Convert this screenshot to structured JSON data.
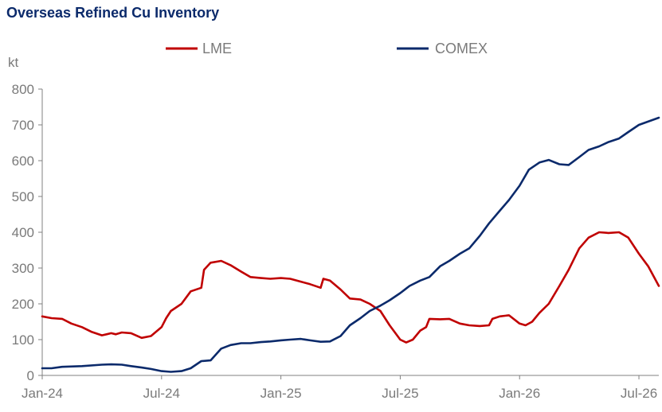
{
  "chart_data": {
    "type": "line",
    "title": "Overseas Refined Cu Inventory",
    "ylabel": "kt",
    "xlabel": "",
    "ylim": [
      0,
      800
    ],
    "yticks": [
      "0",
      "100",
      "200",
      "300",
      "400",
      "500",
      "600",
      "700",
      "800"
    ],
    "xticks": [
      "Jan-24",
      "Jul-24",
      "Jan-25",
      "Jul-25",
      "Jan-26",
      "Jul-26"
    ],
    "xlim": [
      "2024-01",
      "2026-08"
    ],
    "legend": "top",
    "grid": false,
    "series": [
      {
        "name": "LME",
        "color": "#c00000",
        "points": [
          [
            "2024-01",
            165
          ],
          [
            "2024-01-15",
            160
          ],
          [
            "2024-02",
            158
          ],
          [
            "2024-02-15",
            145
          ],
          [
            "2024-03",
            135
          ],
          [
            "2024-03-15",
            122
          ],
          [
            "2024-04",
            112
          ],
          [
            "2024-04-08",
            115
          ],
          [
            "2024-04-15",
            118
          ],
          [
            "2024-04-22",
            115
          ],
          [
            "2024-05",
            120
          ],
          [
            "2024-05-15",
            118
          ],
          [
            "2024-06",
            105
          ],
          [
            "2024-06-15",
            110
          ],
          [
            "2024-07",
            135
          ],
          [
            "2024-07-08",
            160
          ],
          [
            "2024-07-15",
            180
          ],
          [
            "2024-08",
            200
          ],
          [
            "2024-08-15",
            235
          ],
          [
            "2024-09",
            245
          ],
          [
            "2024-09-05",
            295
          ],
          [
            "2024-09-15",
            315
          ],
          [
            "2024-10",
            320
          ],
          [
            "2024-10-15",
            308
          ],
          [
            "2024-11",
            290
          ],
          [
            "2024-11-15",
            275
          ],
          [
            "2024-12",
            272
          ],
          [
            "2024-12-15",
            270
          ],
          [
            "2025-01",
            272
          ],
          [
            "2025-01-15",
            270
          ],
          [
            "2025-02",
            262
          ],
          [
            "2025-02-15",
            255
          ],
          [
            "2025-03",
            245
          ],
          [
            "2025-03-05",
            270
          ],
          [
            "2025-03-15",
            265
          ],
          [
            "2025-04",
            240
          ],
          [
            "2025-04-15",
            215
          ],
          [
            "2025-05",
            212
          ],
          [
            "2025-05-15",
            200
          ],
          [
            "2025-06",
            180
          ],
          [
            "2025-06-15",
            140
          ],
          [
            "2025-07",
            100
          ],
          [
            "2025-07-10",
            92
          ],
          [
            "2025-07-20",
            100
          ],
          [
            "2025-08",
            125
          ],
          [
            "2025-08-10",
            135
          ],
          [
            "2025-08-15",
            158
          ],
          [
            "2025-09",
            157
          ],
          [
            "2025-09-15",
            158
          ],
          [
            "2025-10",
            145
          ],
          [
            "2025-10-15",
            140
          ],
          [
            "2025-11",
            138
          ],
          [
            "2025-11-15",
            140
          ],
          [
            "2025-11-20",
            158
          ],
          [
            "2025-12",
            165
          ],
          [
            "2025-12-15",
            168
          ],
          [
            "2026-01",
            145
          ],
          [
            "2026-01-10",
            140
          ],
          [
            "2026-01-20",
            150
          ],
          [
            "2026-02",
            175
          ],
          [
            "2026-02-15",
            200
          ],
          [
            "2026-03",
            250
          ],
          [
            "2026-03-15",
            295
          ],
          [
            "2026-04",
            355
          ],
          [
            "2026-04-15",
            385
          ],
          [
            "2026-05",
            400
          ],
          [
            "2026-05-15",
            398
          ],
          [
            "2026-06",
            400
          ],
          [
            "2026-06-15",
            385
          ],
          [
            "2026-07",
            340
          ],
          [
            "2026-07-15",
            305
          ],
          [
            "2026-08",
            250
          ]
        ]
      },
      {
        "name": "COMEX",
        "color": "#0b2a6b",
        "points": [
          [
            "2024-01",
            20
          ],
          [
            "2024-01-15",
            20
          ],
          [
            "2024-02",
            24
          ],
          [
            "2024-03",
            26
          ],
          [
            "2024-04",
            30
          ],
          [
            "2024-04-15",
            31
          ],
          [
            "2024-05",
            30
          ],
          [
            "2024-05-15",
            26
          ],
          [
            "2024-06",
            22
          ],
          [
            "2024-06-15",
            18
          ],
          [
            "2024-07",
            12
          ],
          [
            "2024-07-15",
            10
          ],
          [
            "2024-08",
            12
          ],
          [
            "2024-08-15",
            20
          ],
          [
            "2024-09",
            40
          ],
          [
            "2024-09-15",
            42
          ],
          [
            "2024-10",
            75
          ],
          [
            "2024-10-15",
            85
          ],
          [
            "2024-11",
            90
          ],
          [
            "2024-11-15",
            90
          ],
          [
            "2024-12",
            93
          ],
          [
            "2024-12-15",
            95
          ],
          [
            "2025-01",
            98
          ],
          [
            "2025-01-15",
            100
          ],
          [
            "2025-02",
            102
          ],
          [
            "2025-02-15",
            98
          ],
          [
            "2025-03",
            94
          ],
          [
            "2025-03-15",
            95
          ],
          [
            "2025-04",
            110
          ],
          [
            "2025-04-15",
            140
          ],
          [
            "2025-05",
            160
          ],
          [
            "2025-05-15",
            180
          ],
          [
            "2025-06",
            195
          ],
          [
            "2025-06-15",
            210
          ],
          [
            "2025-07",
            230
          ],
          [
            "2025-07-15",
            250
          ],
          [
            "2025-08",
            265
          ],
          [
            "2025-08-15",
            275
          ],
          [
            "2025-09",
            305
          ],
          [
            "2025-09-15",
            320
          ],
          [
            "2025-10",
            340
          ],
          [
            "2025-10-15",
            355
          ],
          [
            "2025-11",
            390
          ],
          [
            "2025-11-15",
            425
          ],
          [
            "2025-12",
            460
          ],
          [
            "2025-12-15",
            490
          ],
          [
            "2026-01",
            530
          ],
          [
            "2026-01-15",
            575
          ],
          [
            "2026-02",
            595
          ],
          [
            "2026-02-15",
            602
          ],
          [
            "2026-03",
            590
          ],
          [
            "2026-03-15",
            588
          ],
          [
            "2026-04",
            610
          ],
          [
            "2026-04-15",
            630
          ],
          [
            "2026-05",
            640
          ],
          [
            "2026-05-15",
            652
          ],
          [
            "2026-06",
            662
          ],
          [
            "2026-06-15",
            680
          ],
          [
            "2026-07",
            700
          ],
          [
            "2026-08",
            720
          ]
        ]
      }
    ]
  }
}
